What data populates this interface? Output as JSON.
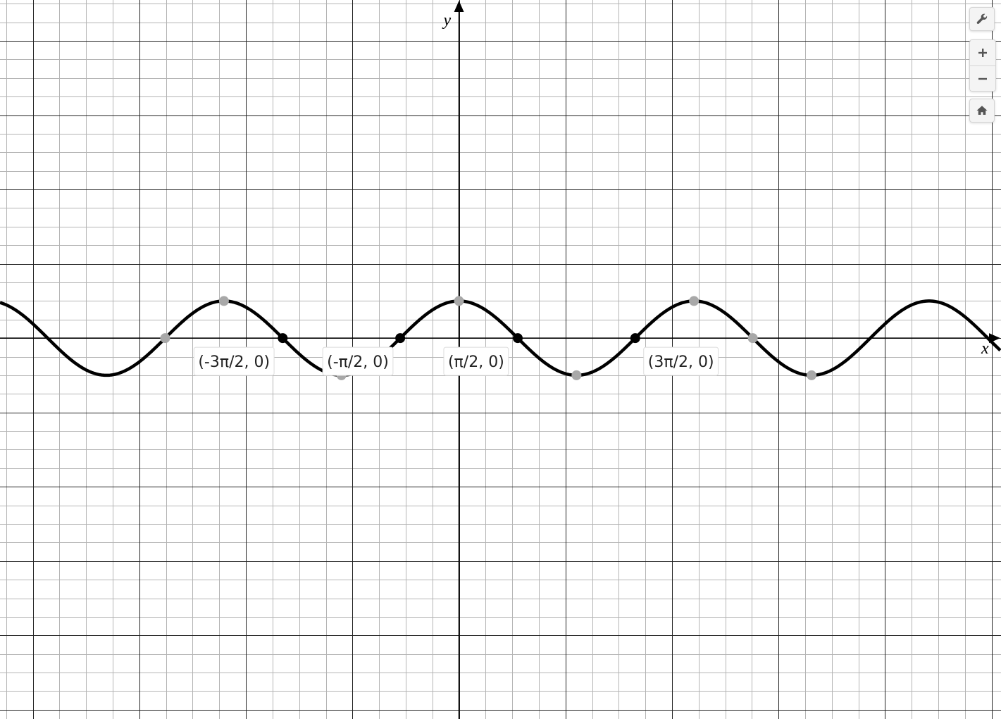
{
  "toolbar": {
    "settings_icon": "wrench-icon",
    "zoom_in_icon": "plus-icon",
    "zoom_out_icon": "minus-icon",
    "home_icon": "home-icon"
  },
  "chart_data": {
    "type": "line",
    "function": "y = cos(x)",
    "xlabel": "x",
    "ylabel": "y",
    "xlim": [
      -12.27,
      14.49
    ],
    "ylim": [
      -10.25,
      9.1
    ],
    "grid": true,
    "major_grid_step": [
      2.848,
      2.0
    ],
    "minor_grid_step": [
      0.712,
      0.5
    ],
    "curve_color": "#000000",
    "series": [
      {
        "values": "cos(x)"
      }
    ],
    "highlighted_points": [
      {
        "x": -4.712,
        "y": 0,
        "label": "(-3π/2, 0)"
      },
      {
        "x": -1.571,
        "y": 0,
        "label": "(-π/2, 0)"
      },
      {
        "x": 1.571,
        "y": 0,
        "label": "(π/2, 0)"
      },
      {
        "x": 4.712,
        "y": 0,
        "label": "(3π/2, 0)"
      }
    ],
    "gray_points": [
      {
        "x": -7.854,
        "y": 0
      },
      {
        "x": -6.283,
        "y": 1
      },
      {
        "x": -3.1416,
        "y": -1
      },
      {
        "x": 0,
        "y": 1
      },
      {
        "x": 3.1416,
        "y": -1
      },
      {
        "x": 6.283,
        "y": 1
      },
      {
        "x": 7.854,
        "y": 0
      },
      {
        "x": 9.425,
        "y": -1
      }
    ],
    "highlight_color": "#000000",
    "gray_point_color": "#a8a8a8"
  }
}
